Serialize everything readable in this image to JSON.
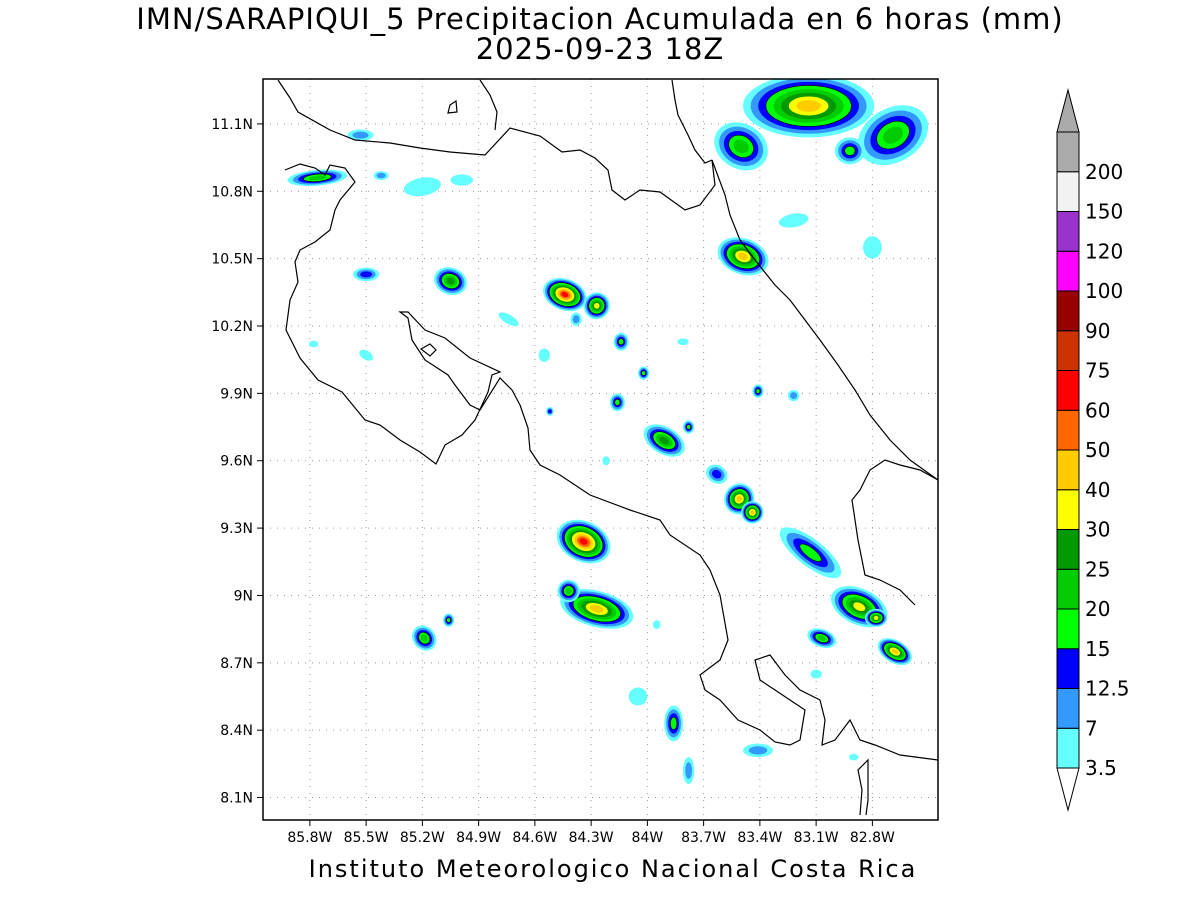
{
  "title": {
    "line1": "IMN/SARAPIQUI_5 Precipitacion Acumulada en 6 horas (mm)",
    "line2": "2025-09-23 18Z"
  },
  "footer": "Instituto Meteorologico Nacional Costa Rica",
  "map": {
    "lon_range": [
      -86.05,
      -82.45
    ],
    "lat_range": [
      8.0,
      11.3
    ],
    "x_ticks": [
      {
        "value": -85.8,
        "label": "85.8W"
      },
      {
        "value": -85.5,
        "label": "85.5W"
      },
      {
        "value": -85.2,
        "label": "85.2W"
      },
      {
        "value": -84.9,
        "label": "84.9W"
      },
      {
        "value": -84.6,
        "label": "84.6W"
      },
      {
        "value": -84.3,
        "label": "84.3W"
      },
      {
        "value": -84.0,
        "label": "84W"
      },
      {
        "value": -83.7,
        "label": "83.7W"
      },
      {
        "value": -83.4,
        "label": "83.4W"
      },
      {
        "value": -83.1,
        "label": "83.1W"
      },
      {
        "value": -82.8,
        "label": "82.8W"
      }
    ],
    "y_ticks": [
      {
        "value": 8.1,
        "label": "8.1N"
      },
      {
        "value": 8.4,
        "label": "8.4N"
      },
      {
        "value": 8.7,
        "label": "8.7N"
      },
      {
        "value": 9.0,
        "label": "9N"
      },
      {
        "value": 9.3,
        "label": "9.3N"
      },
      {
        "value": 9.6,
        "label": "9.6N"
      },
      {
        "value": 9.9,
        "label": "9.9N"
      },
      {
        "value": 10.2,
        "label": "10.2N"
      },
      {
        "value": 10.5,
        "label": "10.5N"
      },
      {
        "value": 10.8,
        "label": "10.8N"
      },
      {
        "value": 11.1,
        "label": "11.1N"
      }
    ],
    "grid": "dotted"
  },
  "colorbar": {
    "levels": [
      {
        "label": "3.5",
        "color": "#66ffff"
      },
      {
        "label": "7",
        "color": "#3399ff"
      },
      {
        "label": "12.5",
        "color": "#0000ff"
      },
      {
        "label": "15",
        "color": "#00ff00"
      },
      {
        "label": "20",
        "color": "#00cc00"
      },
      {
        "label": "25",
        "color": "#009900"
      },
      {
        "label": "30",
        "color": "#ffff00"
      },
      {
        "label": "40",
        "color": "#ffcc00"
      },
      {
        "label": "50",
        "color": "#ff6600"
      },
      {
        "label": "60",
        "color": "#ff0000"
      },
      {
        "label": "75",
        "color": "#cc3300"
      },
      {
        "label": "90",
        "color": "#990000"
      },
      {
        "label": "100",
        "color": "#ff00ff"
      },
      {
        "label": "120",
        "color": "#9933cc"
      },
      {
        "label": "150",
        "color": "#f2f2f2"
      },
      {
        "label": "200",
        "color": "#aaaaaa"
      }
    ]
  },
  "precip_cells": [
    {
      "lon": -85.76,
      "lat": 10.86,
      "rx": 0.16,
      "ry": 0.035,
      "rot": -5,
      "peak": 4
    },
    {
      "lon": -85.53,
      "lat": 11.05,
      "rx": 0.07,
      "ry": 0.025,
      "rot": 0,
      "peak": 1
    },
    {
      "lon": -85.42,
      "lat": 10.87,
      "rx": 0.04,
      "ry": 0.02,
      "rot": 0,
      "peak": 1
    },
    {
      "lon": -85.2,
      "lat": 10.82,
      "rx": 0.1,
      "ry": 0.04,
      "rot": -10,
      "peak": 0
    },
    {
      "lon": -84.99,
      "lat": 10.85,
      "rx": 0.06,
      "ry": 0.025,
      "rot": 0,
      "peak": 0
    },
    {
      "lon": -85.5,
      "lat": 10.43,
      "rx": 0.07,
      "ry": 0.03,
      "rot": 0,
      "peak": 2
    },
    {
      "lon": -85.05,
      "lat": 10.4,
      "rx": 0.09,
      "ry": 0.06,
      "rot": 20,
      "peak": 5
    },
    {
      "lon": -84.44,
      "lat": 10.34,
      "rx": 0.12,
      "ry": 0.07,
      "rot": 20,
      "peak": 9
    },
    {
      "lon": -84.27,
      "lat": 10.29,
      "rx": 0.07,
      "ry": 0.06,
      "rot": 20,
      "peak": 6
    },
    {
      "lon": -84.38,
      "lat": 10.23,
      "rx": 0.03,
      "ry": 0.03,
      "rot": 0,
      "peak": 1
    },
    {
      "lon": -84.14,
      "lat": 10.13,
      "rx": 0.04,
      "ry": 0.04,
      "rot": 0,
      "peak": 3
    },
    {
      "lon": -84.74,
      "lat": 10.23,
      "rx": 0.06,
      "ry": 0.02,
      "rot": 30,
      "peak": 0
    },
    {
      "lon": -84.02,
      "lat": 9.99,
      "rx": 0.03,
      "ry": 0.03,
      "rot": 0,
      "peak": 3
    },
    {
      "lon": -84.16,
      "lat": 9.86,
      "rx": 0.04,
      "ry": 0.04,
      "rot": 0,
      "peak": 3
    },
    {
      "lon": -83.91,
      "lat": 9.69,
      "rx": 0.12,
      "ry": 0.06,
      "rot": 30,
      "peak": 5
    },
    {
      "lon": -83.78,
      "lat": 9.75,
      "rx": 0.03,
      "ry": 0.03,
      "rot": 0,
      "peak": 3
    },
    {
      "lon": -83.51,
      "lat": 9.43,
      "rx": 0.08,
      "ry": 0.07,
      "rot": 30,
      "peak": 7
    },
    {
      "lon": -83.44,
      "lat": 9.37,
      "rx": 0.06,
      "ry": 0.05,
      "rot": 20,
      "peak": 7
    },
    {
      "lon": -83.63,
      "lat": 9.54,
      "rx": 0.06,
      "ry": 0.04,
      "rot": 30,
      "peak": 2
    },
    {
      "lon": -83.41,
      "lat": 9.91,
      "rx": 0.03,
      "ry": 0.03,
      "rot": 0,
      "peak": 3
    },
    {
      "lon": -83.22,
      "lat": 9.89,
      "rx": 0.03,
      "ry": 0.025,
      "rot": 0,
      "peak": 1
    },
    {
      "lon": -83.49,
      "lat": 10.51,
      "rx": 0.14,
      "ry": 0.08,
      "rot": 20,
      "peak": 7
    },
    {
      "lon": -83.22,
      "lat": 10.67,
      "rx": 0.08,
      "ry": 0.03,
      "rot": -10,
      "peak": 0
    },
    {
      "lon": -82.8,
      "lat": 10.55,
      "rx": 0.05,
      "ry": 0.05,
      "rot": 0,
      "peak": 0
    },
    {
      "lon": -83.14,
      "lat": 11.18,
      "rx": 0.35,
      "ry": 0.14,
      "rot": 0,
      "peak": 7
    },
    {
      "lon": -83.5,
      "lat": 11.0,
      "rx": 0.15,
      "ry": 0.1,
      "rot": 30,
      "peak": 4
    },
    {
      "lon": -82.69,
      "lat": 11.05,
      "rx": 0.2,
      "ry": 0.12,
      "rot": -30,
      "peak": 4
    },
    {
      "lon": -82.92,
      "lat": 10.98,
      "rx": 0.08,
      "ry": 0.06,
      "rot": 0,
      "peak": 3
    },
    {
      "lon": -84.34,
      "lat": 9.24,
      "rx": 0.15,
      "ry": 0.09,
      "rot": 25,
      "peak": 9
    },
    {
      "lon": -84.27,
      "lat": 8.94,
      "rx": 0.2,
      "ry": 0.08,
      "rot": 15,
      "peak": 7
    },
    {
      "lon": -84.42,
      "lat": 9.02,
      "rx": 0.06,
      "ry": 0.05,
      "rot": 0,
      "peak": 4
    },
    {
      "lon": -85.19,
      "lat": 8.81,
      "rx": 0.06,
      "ry": 0.06,
      "rot": -40,
      "peak": 4
    },
    {
      "lon": -85.06,
      "lat": 8.89,
      "rx": 0.03,
      "ry": 0.03,
      "rot": 0,
      "peak": 3
    },
    {
      "lon": -83.13,
      "lat": 9.19,
      "rx": 0.2,
      "ry": 0.06,
      "rot": 38,
      "peak": 3
    },
    {
      "lon": -82.87,
      "lat": 8.95,
      "rx": 0.16,
      "ry": 0.08,
      "rot": 25,
      "peak": 6
    },
    {
      "lon": -82.78,
      "lat": 8.9,
      "rx": 0.06,
      "ry": 0.04,
      "rot": 0,
      "peak": 6
    },
    {
      "lon": -82.68,
      "lat": 8.75,
      "rx": 0.1,
      "ry": 0.05,
      "rot": 30,
      "peak": 7
    },
    {
      "lon": -83.07,
      "lat": 8.81,
      "rx": 0.08,
      "ry": 0.04,
      "rot": 20,
      "peak": 4
    },
    {
      "lon": -83.86,
      "lat": 8.43,
      "rx": 0.05,
      "ry": 0.08,
      "rot": 0,
      "peak": 3
    },
    {
      "lon": -83.78,
      "lat": 8.22,
      "rx": 0.03,
      "ry": 0.06,
      "rot": 0,
      "peak": 1
    },
    {
      "lon": -84.05,
      "lat": 8.55,
      "rx": 0.05,
      "ry": 0.04,
      "rot": 0,
      "peak": 0
    },
    {
      "lon": -83.41,
      "lat": 8.31,
      "rx": 0.08,
      "ry": 0.03,
      "rot": 0,
      "peak": 1
    },
    {
      "lon": -84.52,
      "lat": 9.82,
      "rx": 0.02,
      "ry": 0.02,
      "rot": 0,
      "peak": 2
    },
    {
      "lon": -83.81,
      "lat": 10.13,
      "rx": 0.03,
      "ry": 0.015,
      "rot": 0,
      "peak": 0
    },
    {
      "lon": -84.55,
      "lat": 10.07,
      "rx": 0.03,
      "ry": 0.03,
      "rot": 0,
      "peak": 0
    },
    {
      "lon": -85.5,
      "lat": 10.07,
      "rx": 0.04,
      "ry": 0.02,
      "rot": 30,
      "peak": 0
    },
    {
      "lon": -85.78,
      "lat": 10.12,
      "rx": 0.025,
      "ry": 0.015,
      "rot": 0,
      "peak": 0
    },
    {
      "lon": -84.22,
      "lat": 9.6,
      "rx": 0.02,
      "ry": 0.02,
      "rot": 0,
      "peak": 0
    },
    {
      "lon": -83.95,
      "lat": 8.87,
      "rx": 0.02,
      "ry": 0.02,
      "rot": 0,
      "peak": 0
    },
    {
      "lon": -82.9,
      "lat": 8.28,
      "rx": 0.025,
      "ry": 0.015,
      "rot": 0,
      "peak": 0
    },
    {
      "lon": -83.1,
      "lat": 8.65,
      "rx": 0.03,
      "ry": 0.02,
      "rot": 0,
      "peak": 0
    }
  ]
}
